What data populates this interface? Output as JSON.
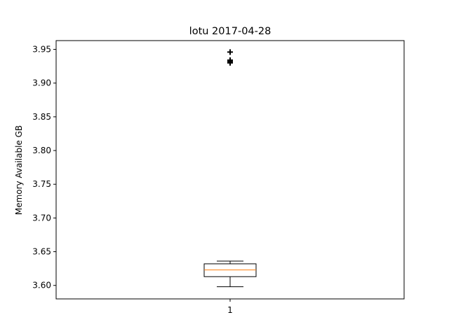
{
  "chart_data": {
    "type": "box",
    "title": "lotu 2017-04-28",
    "xlabel": "",
    "ylabel": "Memory Available GB",
    "ylim": [
      3.58,
      3.963
    ],
    "yticks": [
      3.6,
      3.65,
      3.7,
      3.75,
      3.8,
      3.85,
      3.9,
      3.95
    ],
    "ytick_labels": [
      "3.60",
      "3.65",
      "3.70",
      "3.75",
      "3.80",
      "3.85",
      "3.90",
      "3.95"
    ],
    "categories": [
      "1"
    ],
    "boxes": [
      {
        "label": "1",
        "whisker_low": 3.598,
        "q1": 3.613,
        "median": 3.623,
        "q3": 3.632,
        "whisker_high": 3.636,
        "outliers": [
          3.946,
          3.934,
          3.932,
          3.93
        ]
      }
    ],
    "colors": {
      "box": "#000000",
      "median": "#ff7f0e",
      "whisker": "#000000",
      "flier": "#000000"
    }
  }
}
